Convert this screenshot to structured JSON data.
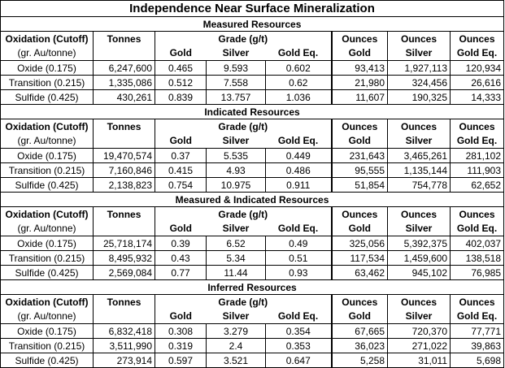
{
  "title": "Independence Near Surface Mineralization",
  "header": {
    "oxidation": "Oxidation (Cutoff)",
    "oxidation_sub": "(gr. Au/tonne)",
    "tonnes": "Tonnes",
    "grade": "Grade (g/t)",
    "gold": "Gold",
    "silver": "Silver",
    "gold_eq": "Gold Eq.",
    "ounces": "Ounces"
  },
  "sections": [
    {
      "name": "Measured Resources",
      "rows": [
        {
          "label": "Oxide (0.175)",
          "tonnes": "6,247,600",
          "gold": "0.465",
          "silver": "9.593",
          "gold_eq": "0.602",
          "oz_gold": "93,413",
          "oz_silver": "1,927,113",
          "oz_gold_eq": "120,934"
        },
        {
          "label": "Transition (0.215)",
          "tonnes": "1,335,086",
          "gold": "0.512",
          "silver": "7.558",
          "gold_eq": "0.62",
          "oz_gold": "21,980",
          "oz_silver": "324,456",
          "oz_gold_eq": "26,616"
        },
        {
          "label": "Sulfide (0.425)",
          "tonnes": "430,261",
          "gold": "0.839",
          "silver": "13.757",
          "gold_eq": "1.036",
          "oz_gold": "11,607",
          "oz_silver": "190,325",
          "oz_gold_eq": "14,333"
        }
      ]
    },
    {
      "name": "Indicated Resources",
      "rows": [
        {
          "label": "Oxide (0.175)",
          "tonnes": "19,470,574",
          "gold": "0.37",
          "silver": "5.535",
          "gold_eq": "0.449",
          "oz_gold": "231,643",
          "oz_silver": "3,465,261",
          "oz_gold_eq": "281,102"
        },
        {
          "label": "Transition (0.215)",
          "tonnes": "7,160,846",
          "gold": "0.415",
          "silver": "4.93",
          "gold_eq": "0.486",
          "oz_gold": "95,555",
          "oz_silver": "1,135,144",
          "oz_gold_eq": "111,903"
        },
        {
          "label": "Sulfide (0.425)",
          "tonnes": "2,138,823",
          "gold": "0.754",
          "silver": "10.975",
          "gold_eq": "0.911",
          "oz_gold": "51,854",
          "oz_silver": "754,778",
          "oz_gold_eq": "62,652"
        }
      ]
    },
    {
      "name": "Measured & Indicated Resources",
      "rows": [
        {
          "label": "Oxide (0.175)",
          "tonnes": "25,718,174",
          "gold": "0.39",
          "silver": "6.52",
          "gold_eq": "0.49",
          "oz_gold": "325,056",
          "oz_silver": "5,392,375",
          "oz_gold_eq": "402,037"
        },
        {
          "label": "Transition (0.215)",
          "tonnes": "8,495,932",
          "gold": "0.43",
          "silver": "5.34",
          "gold_eq": "0.51",
          "oz_gold": "117,534",
          "oz_silver": "1,459,600",
          "oz_gold_eq": "138,518"
        },
        {
          "label": "Sulfide (0.425)",
          "tonnes": "2,569,084",
          "gold": "0.77",
          "silver": "11.44",
          "gold_eq": "0.93",
          "oz_gold": "63,462",
          "oz_silver": "945,102",
          "oz_gold_eq": "76,985"
        }
      ]
    },
    {
      "name": "Inferred Resources",
      "rows": [
        {
          "label": "Oxide (0.175)",
          "tonnes": "6,832,418",
          "gold": "0.308",
          "silver": "3.279",
          "gold_eq": "0.354",
          "oz_gold": "67,665",
          "oz_silver": "720,370",
          "oz_gold_eq": "77,771"
        },
        {
          "label": "Transition (0.215)",
          "tonnes": "3,511,990",
          "gold": "0.319",
          "silver": "2.4",
          "gold_eq": "0.353",
          "oz_gold": "36,023",
          "oz_silver": "271,022",
          "oz_gold_eq": "39,863"
        },
        {
          "label": "Sulfide (0.425)",
          "tonnes": "273,914",
          "gold": "0.597",
          "silver": "3.521",
          "gold_eq": "0.647",
          "oz_gold": "5,258",
          "oz_silver": "31,011",
          "oz_gold_eq": "5,698"
        }
      ]
    }
  ]
}
